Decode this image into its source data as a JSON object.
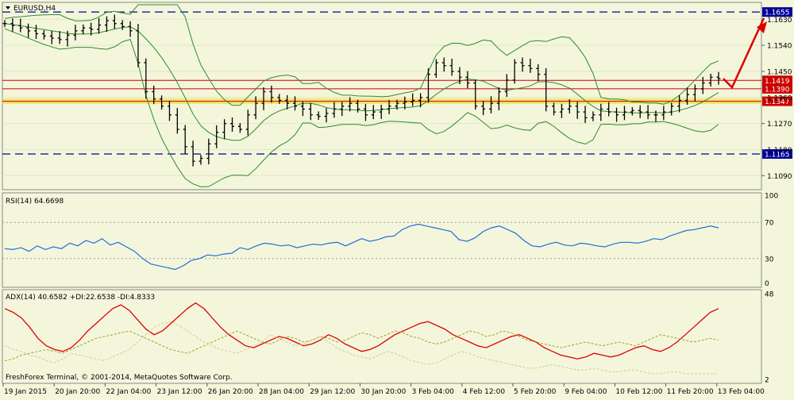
{
  "main_panel": {
    "title": "EURUSD,H4",
    "menu_icon": "triangle-down-icon"
  },
  "rsi_panel": {
    "label": "RSI(14) 64.6698"
  },
  "adx_panel": {
    "label": "ADX(14) 40.6582 +DI:22.6538 -DI:4.8333"
  },
  "footer_text": "FreshForex Terminal, © 2001-2014, MetaQuotes Software Corp.",
  "colors": {
    "background": "#f4f6dc",
    "candles": "#000000",
    "bollinger": "#2e8b2e",
    "support_band": "#f0e050",
    "level_line": "#cc0000",
    "target_line": "#000099",
    "arrow": "#dd0000",
    "rsi": "#1e6fd8",
    "adx": "#dd0000",
    "di": "#a0a020"
  },
  "chart_data": [
    {
      "type": "candlestick",
      "symbol": "EURUSD",
      "timeframe": "H4",
      "ylim": [
        1.105,
        1.168
      ],
      "price_ticks": [
        "1.1630",
        "1.1540",
        "1.1450",
        "1.1360",
        "1.1270",
        "1.1180",
        "1.1090"
      ],
      "x_labels": [
        "19 Jan 2015",
        "20 Jan 20:00",
        "22 Jan 04:00",
        "23 Jan 12:00",
        "26 Jan 20:00",
        "28 Jan 04:00",
        "29 Jan 12:00",
        "30 Jan 20:00",
        "3 Feb 04:00",
        "4 Feb 12:00",
        "5 Feb 20:00",
        "9 Feb 04:00",
        "10 Feb 12:00",
        "11 Feb 20:00",
        "13 Feb 04:00"
      ],
      "close_path": [
        1.1615,
        1.1608,
        1.16,
        1.159,
        1.158,
        1.1572,
        1.1565,
        1.156,
        1.1575,
        1.159,
        1.16,
        1.1595,
        1.161,
        1.1625,
        1.1615,
        1.1605,
        1.159,
        1.148,
        1.138,
        1.1355,
        1.133,
        1.13,
        1.125,
        1.119,
        1.114,
        1.115,
        1.12,
        1.124,
        1.127,
        1.126,
        1.125,
        1.13,
        1.134,
        1.138,
        1.136,
        1.135,
        1.134,
        1.133,
        1.132,
        1.13,
        1.1295,
        1.1305,
        1.132,
        1.133,
        1.134,
        1.132,
        1.13,
        1.131,
        1.132,
        1.133,
        1.134,
        1.1345,
        1.135,
        1.136,
        1.144,
        1.148,
        1.147,
        1.145,
        1.143,
        1.141,
        1.133,
        1.132,
        1.134,
        1.138,
        1.142,
        1.148,
        1.147,
        1.146,
        1.144,
        1.133,
        1.131,
        1.132,
        1.133,
        1.131,
        1.129,
        1.13,
        1.132,
        1.131,
        1.13,
        1.131,
        1.1315,
        1.131,
        1.13,
        1.13,
        1.131,
        1.133,
        1.135,
        1.137,
        1.139,
        1.141,
        1.143,
        1.1425
      ],
      "levels": [
        {
          "label": "1.1655",
          "value": 1.1655,
          "style": "dashed-blue"
        },
        {
          "label": "1.1419",
          "value": 1.1419,
          "style": "solid-red"
        },
        {
          "label": "1.1390",
          "value": 1.139,
          "style": "solid-red"
        },
        {
          "label": "1.1347",
          "value": 1.1347,
          "style": "solid-red"
        },
        {
          "label": "1.1165",
          "value": 1.1165,
          "style": "dashed-blue"
        }
      ],
      "support_band": [
        1.1338,
        1.1356
      ],
      "forecast_arrow": [
        1.1425,
        1.1395,
        1.165
      ]
    },
    {
      "type": "line",
      "title": "RSI(14) 64.6698",
      "ylim": [
        0,
        100
      ],
      "y_ticks": [
        "100",
        "70",
        "30",
        "0"
      ],
      "levels": [
        70,
        30
      ],
      "values": [
        41,
        40,
        42,
        38,
        44,
        40,
        43,
        41,
        47,
        44,
        50,
        47,
        52,
        45,
        48,
        43,
        38,
        30,
        24,
        22,
        20,
        18,
        22,
        28,
        30,
        34,
        33,
        35,
        36,
        42,
        40,
        44,
        47,
        46,
        44,
        45,
        42,
        44,
        46,
        45,
        47,
        48,
        44,
        48,
        52,
        49,
        51,
        54,
        55,
        62,
        66,
        68,
        66,
        64,
        62,
        60,
        51,
        49,
        53,
        60,
        64,
        66,
        62,
        58,
        50,
        44,
        43,
        46,
        48,
        45,
        44,
        47,
        46,
        44,
        43,
        46,
        48,
        48,
        47,
        49,
        52,
        51,
        55,
        58,
        61,
        62,
        64,
        66,
        64
      ]
    },
    {
      "type": "line",
      "title": "ADX(14) 40.6582 +DI:22.6538 -DI:4.8333",
      "y_ticks": [
        "48",
        "2"
      ],
      "ylim": [
        2,
        48
      ],
      "series": [
        {
          "name": "ADX",
          "values": [
            40,
            38,
            35,
            30,
            24,
            20,
            18,
            17,
            19,
            23,
            28,
            32,
            36,
            40,
            42,
            39,
            34,
            29,
            26,
            28,
            32,
            36,
            40,
            43,
            40,
            35,
            30,
            26,
            23,
            20,
            19,
            21,
            23,
            25,
            24,
            22,
            20,
            21,
            23,
            26,
            24,
            21,
            19,
            17,
            18,
            20,
            23,
            26,
            28,
            30,
            32,
            33,
            31,
            29,
            26,
            24,
            22,
            20,
            19,
            21,
            23,
            25,
            26,
            24,
            22,
            19,
            17,
            15,
            14,
            13,
            14,
            16,
            15,
            14,
            15,
            17,
            19,
            20,
            18,
            17,
            19,
            22,
            26,
            30,
            34,
            38,
            40
          ]
        },
        {
          "name": "+DI",
          "values": [
            12,
            13,
            15,
            16,
            17,
            18,
            17,
            16,
            18,
            20,
            22,
            24,
            25,
            26,
            27,
            28,
            26,
            24,
            22,
            20,
            18,
            17,
            16,
            18,
            20,
            22,
            24,
            26,
            28,
            26,
            24,
            22,
            21,
            23,
            25,
            24,
            22,
            23,
            25,
            24,
            22,
            23,
            25,
            27,
            26,
            24,
            26,
            28,
            27,
            25,
            24,
            22,
            21,
            22,
            24,
            26,
            28,
            27,
            25,
            26,
            28,
            27,
            25,
            23,
            22,
            21,
            20,
            19,
            20,
            21,
            22,
            21,
            20,
            21,
            22,
            21,
            20,
            22,
            24,
            26,
            25,
            24,
            23,
            22,
            23,
            24,
            23
          ]
        },
        {
          "name": "-DI",
          "values": [
            20,
            18,
            17,
            15,
            14,
            12,
            11,
            13,
            16,
            15,
            14,
            13,
            12,
            14,
            16,
            18,
            22,
            26,
            30,
            32,
            33,
            31,
            28,
            25,
            22,
            20,
            18,
            17,
            16,
            18,
            20,
            22,
            26,
            24,
            22,
            20,
            21,
            23,
            25,
            22,
            19,
            17,
            15,
            14,
            13,
            15,
            17,
            16,
            14,
            12,
            11,
            10,
            11,
            13,
            15,
            17,
            16,
            14,
            13,
            12,
            11,
            10,
            9,
            8,
            8,
            9,
            10,
            9,
            8,
            7,
            7,
            8,
            7,
            6,
            6,
            7,
            7,
            6,
            5,
            5,
            6,
            6,
            5,
            5,
            5,
            5,
            5
          ]
        }
      ]
    }
  ]
}
